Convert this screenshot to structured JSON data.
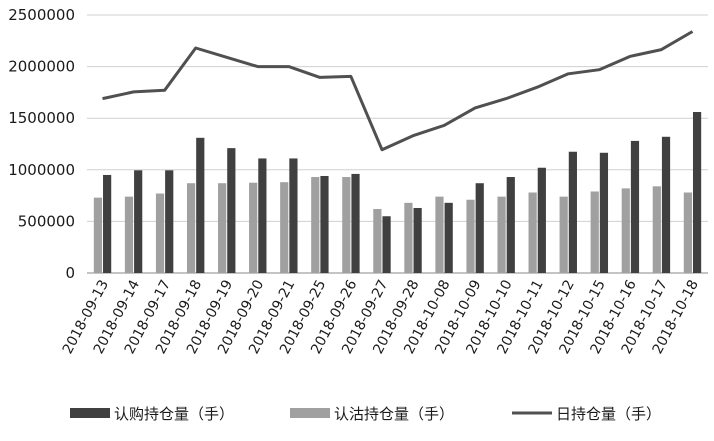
{
  "chart_data": {
    "type": "bar",
    "title": "",
    "xlabel": "",
    "ylabel": "",
    "ylim": [
      0,
      2500000
    ],
    "yticks": [
      "2500000",
      "2000000",
      "1500000",
      "1000000",
      "500000",
      "0"
    ],
    "ytick_values": [
      2500000,
      2000000,
      1500000,
      1000000,
      500000,
      0
    ],
    "grid": true,
    "legend_position": "bottom",
    "categories": [
      "2018-09-13",
      "2018-09-14",
      "2018-09-17",
      "2018-09-18",
      "2018-09-19",
      "2018-09-20",
      "2018-09-21",
      "2018-09-25",
      "2018-09-26",
      "2018-09-27",
      "2018-09-28",
      "2018-10-08",
      "2018-10-09",
      "2018-10-10",
      "2018-10-11",
      "2018-10-12",
      "2018-10-15",
      "2018-10-16",
      "2018-10-17",
      "2018-10-18"
    ],
    "series": [
      {
        "name": "认购持仓量（手）",
        "kind": "bar",
        "color": "#404040",
        "values": [
          950000,
          995000,
          995000,
          1310000,
          1210000,
          1110000,
          1110000,
          940000,
          960000,
          550000,
          630000,
          680000,
          870000,
          930000,
          1020000,
          1175000,
          1165000,
          1280000,
          1320000,
          1560000
        ]
      },
      {
        "name": "认沽持仓量（手）",
        "kind": "bar",
        "color": "#a0a0a0",
        "values": [
          730000,
          740000,
          770000,
          870000,
          870000,
          875000,
          880000,
          930000,
          930000,
          620000,
          680000,
          740000,
          710000,
          740000,
          780000,
          740000,
          790000,
          820000,
          840000,
          780000
        ]
      },
      {
        "name": "日持仓量（手）",
        "kind": "line",
        "color": "#505050",
        "values": [
          1690000,
          1755000,
          1770000,
          2180000,
          2090000,
          2000000,
          2000000,
          1895000,
          1905000,
          1195000,
          1330000,
          1430000,
          1600000,
          1690000,
          1800000,
          1930000,
          1970000,
          2100000,
          2165000,
          2340000
        ]
      }
    ]
  }
}
